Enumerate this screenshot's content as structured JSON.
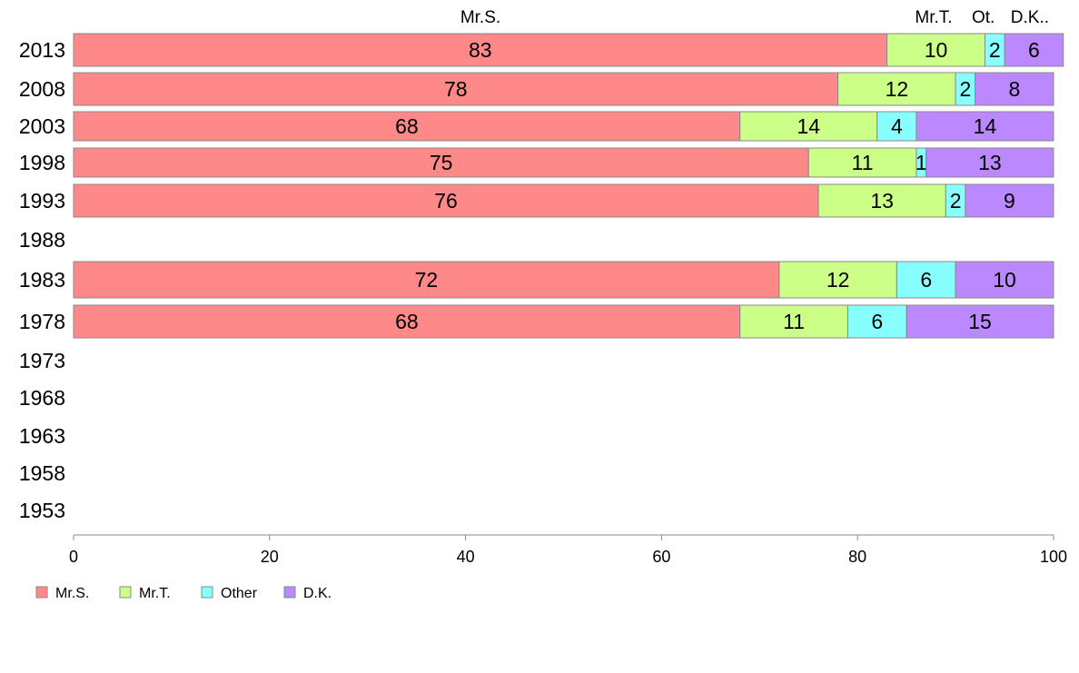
{
  "chart_data": {
    "type": "bar",
    "orientation": "horizontal",
    "stacked": true,
    "title": "",
    "xlabel": "",
    "ylabel": "",
    "xlim": [
      0,
      100
    ],
    "x_ticks": [
      "0",
      "20",
      "40",
      "60",
      "80",
      "100"
    ],
    "grid": false,
    "legend_position": "bottom-left",
    "top_labels": [
      "Mr.S.",
      "Mr.T.",
      "Ot.",
      "D.K.."
    ],
    "categories": [
      "2013",
      "2008",
      "2003",
      "1998",
      "1993",
      "1988",
      "1983",
      "1978",
      "1973",
      "1968",
      "1963",
      "1958",
      "1953"
    ],
    "series": [
      {
        "name": "Mr.S.",
        "color": "#ff8888",
        "values": [
          83,
          78,
          68,
          75,
          76,
          null,
          72,
          68,
          null,
          null,
          null,
          null,
          null
        ],
        "labels": [
          "83",
          "78",
          "68",
          "75",
          "76",
          "",
          "72",
          "68",
          "",
          "",
          "",
          "",
          ""
        ]
      },
      {
        "name": "Mr.T.",
        "color": "#ccff88",
        "values": [
          10,
          12,
          14,
          11,
          13,
          null,
          12,
          11,
          null,
          null,
          null,
          null,
          null
        ],
        "labels": [
          "10",
          "12",
          "14",
          "11",
          "13",
          "",
          "12",
          "11",
          "",
          "",
          "",
          "",
          ""
        ]
      },
      {
        "name": "Other",
        "color": "#88ffff",
        "values": [
          2,
          2,
          4,
          1,
          2,
          null,
          6,
          6,
          null,
          null,
          null,
          null,
          null
        ],
        "labels": [
          "2",
          "2",
          "4",
          "1",
          "2",
          "",
          "6",
          "6",
          "",
          "",
          "",
          "",
          ""
        ]
      },
      {
        "name": "D.K.",
        "color": "#bb88ff",
        "values": [
          6,
          8,
          14,
          13,
          9,
          null,
          10,
          15,
          null,
          null,
          null,
          null,
          null
        ],
        "labels": [
          "6",
          "8",
          "14",
          "13",
          "9",
          "",
          "10",
          "15",
          "",
          "",
          "",
          "",
          ""
        ]
      }
    ]
  }
}
